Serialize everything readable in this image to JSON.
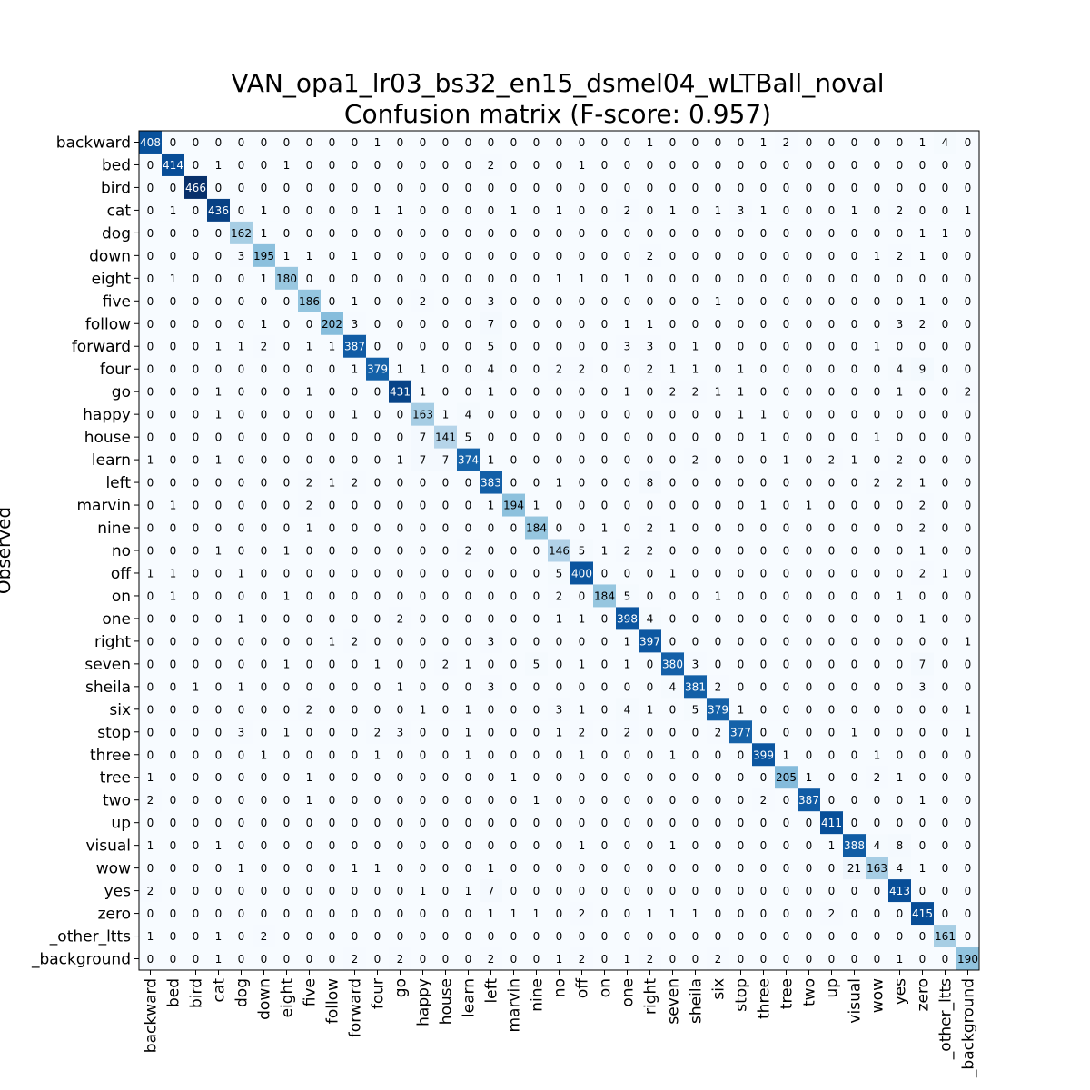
{
  "chart_data": {
    "type": "heatmap",
    "title": "VAN_opa1_lr03_bs32_en15_dsmel04_wLTBall_noval",
    "subtitle": "Confusion matrix (F-score: 0.957)",
    "ylabel": "Observed",
    "xlabel": "",
    "colormap": "Blues",
    "low_color": "#f7fbff",
    "high_color": "#08306b",
    "labels": [
      "backward",
      "bed",
      "bird",
      "cat",
      "dog",
      "down",
      "eight",
      "five",
      "follow",
      "forward",
      "four",
      "go",
      "happy",
      "house",
      "learn",
      "left",
      "marvin",
      "nine",
      "no",
      "off",
      "on",
      "one",
      "right",
      "seven",
      "sheila",
      "six",
      "stop",
      "three",
      "tree",
      "two",
      "up",
      "visual",
      "wow",
      "yes",
      "zero",
      "_other_ltts",
      "_background"
    ],
    "matrix": [
      [
        408,
        0,
        0,
        0,
        0,
        0,
        0,
        0,
        0,
        0,
        1,
        0,
        0,
        0,
        0,
        0,
        0,
        0,
        0,
        0,
        0,
        0,
        1,
        0,
        0,
        0,
        0,
        1,
        2,
        0,
        0,
        0,
        0,
        0,
        1,
        4,
        0
      ],
      [
        0,
        414,
        0,
        1,
        0,
        0,
        1,
        0,
        0,
        0,
        0,
        0,
        0,
        0,
        0,
        2,
        0,
        0,
        0,
        1,
        0,
        0,
        0,
        0,
        0,
        0,
        0,
        0,
        0,
        0,
        0,
        0,
        0,
        0,
        0,
        0,
        0
      ],
      [
        0,
        0,
        466,
        0,
        0,
        0,
        0,
        0,
        0,
        0,
        0,
        0,
        0,
        0,
        0,
        0,
        0,
        0,
        0,
        0,
        0,
        0,
        0,
        0,
        0,
        0,
        0,
        0,
        0,
        0,
        0,
        0,
        0,
        0,
        0,
        0,
        0
      ],
      [
        0,
        1,
        0,
        436,
        0,
        1,
        0,
        0,
        0,
        0,
        1,
        1,
        0,
        0,
        0,
        0,
        1,
        0,
        1,
        0,
        0,
        2,
        0,
        1,
        0,
        1,
        3,
        1,
        0,
        0,
        0,
        1,
        0,
        2,
        0,
        0,
        1
      ],
      [
        0,
        0,
        0,
        0,
        162,
        1,
        0,
        0,
        0,
        0,
        0,
        0,
        0,
        0,
        0,
        0,
        0,
        0,
        0,
        0,
        0,
        0,
        0,
        0,
        0,
        0,
        0,
        0,
        0,
        0,
        0,
        0,
        0,
        0,
        1,
        1,
        0
      ],
      [
        0,
        0,
        0,
        0,
        3,
        195,
        1,
        1,
        0,
        1,
        0,
        0,
        0,
        0,
        0,
        0,
        0,
        0,
        0,
        0,
        0,
        0,
        2,
        0,
        0,
        0,
        0,
        0,
        0,
        0,
        0,
        0,
        1,
        2,
        1,
        0,
        0
      ],
      [
        0,
        1,
        0,
        0,
        0,
        1,
        180,
        0,
        0,
        0,
        0,
        0,
        0,
        0,
        0,
        0,
        0,
        0,
        1,
        1,
        0,
        1,
        0,
        0,
        0,
        0,
        0,
        0,
        0,
        0,
        0,
        0,
        0,
        0,
        0,
        0,
        0
      ],
      [
        0,
        0,
        0,
        0,
        0,
        0,
        0,
        186,
        0,
        1,
        0,
        0,
        2,
        0,
        0,
        3,
        0,
        0,
        0,
        0,
        0,
        0,
        0,
        0,
        0,
        1,
        0,
        0,
        0,
        0,
        0,
        0,
        0,
        0,
        1,
        0,
        0
      ],
      [
        0,
        0,
        0,
        0,
        0,
        1,
        0,
        0,
        202,
        3,
        0,
        0,
        0,
        0,
        0,
        7,
        0,
        0,
        0,
        0,
        0,
        1,
        1,
        0,
        0,
        0,
        0,
        0,
        0,
        0,
        0,
        0,
        0,
        3,
        2,
        0,
        0
      ],
      [
        0,
        0,
        0,
        1,
        1,
        2,
        0,
        1,
        1,
        387,
        0,
        0,
        0,
        0,
        0,
        5,
        0,
        0,
        0,
        0,
        0,
        3,
        3,
        0,
        1,
        0,
        0,
        0,
        0,
        0,
        0,
        0,
        1,
        0,
        0,
        0,
        0
      ],
      [
        0,
        0,
        0,
        0,
        0,
        0,
        0,
        0,
        0,
        1,
        379,
        1,
        1,
        0,
        0,
        4,
        0,
        0,
        2,
        2,
        0,
        0,
        2,
        1,
        1,
        0,
        1,
        0,
        0,
        0,
        0,
        0,
        0,
        4,
        9,
        0,
        0
      ],
      [
        0,
        0,
        0,
        1,
        0,
        0,
        0,
        1,
        0,
        0,
        0,
        431,
        1,
        0,
        0,
        1,
        0,
        0,
        0,
        0,
        0,
        1,
        0,
        2,
        2,
        1,
        1,
        0,
        0,
        0,
        0,
        0,
        0,
        1,
        0,
        0,
        2
      ],
      [
        0,
        0,
        0,
        1,
        0,
        0,
        0,
        0,
        0,
        1,
        0,
        0,
        163,
        1,
        4,
        0,
        0,
        0,
        0,
        0,
        0,
        0,
        0,
        0,
        0,
        0,
        1,
        1,
        0,
        0,
        0,
        0,
        0,
        0,
        0,
        0,
        0
      ],
      [
        0,
        0,
        0,
        0,
        0,
        0,
        0,
        0,
        0,
        0,
        0,
        0,
        7,
        141,
        5,
        0,
        0,
        0,
        0,
        0,
        0,
        0,
        0,
        0,
        0,
        0,
        0,
        1,
        0,
        0,
        0,
        0,
        1,
        0,
        0,
        0,
        0
      ],
      [
        1,
        0,
        0,
        1,
        0,
        0,
        0,
        0,
        0,
        0,
        0,
        1,
        7,
        7,
        374,
        1,
        0,
        0,
        0,
        0,
        0,
        0,
        0,
        0,
        2,
        0,
        0,
        0,
        1,
        0,
        2,
        1,
        0,
        2,
        0,
        0,
        0
      ],
      [
        0,
        0,
        0,
        0,
        0,
        0,
        0,
        2,
        1,
        2,
        0,
        0,
        0,
        0,
        0,
        383,
        0,
        0,
        1,
        0,
        0,
        0,
        8,
        0,
        0,
        0,
        0,
        0,
        0,
        0,
        0,
        0,
        2,
        2,
        1,
        0,
        0
      ],
      [
        0,
        1,
        0,
        0,
        0,
        0,
        0,
        2,
        0,
        0,
        0,
        0,
        0,
        0,
        0,
        1,
        194,
        1,
        0,
        0,
        0,
        0,
        0,
        0,
        0,
        0,
        0,
        1,
        0,
        1,
        0,
        0,
        0,
        0,
        2,
        0,
        0
      ],
      [
        0,
        0,
        0,
        0,
        0,
        0,
        0,
        1,
        0,
        0,
        0,
        0,
        0,
        0,
        0,
        0,
        0,
        184,
        0,
        0,
        1,
        0,
        2,
        1,
        0,
        0,
        0,
        0,
        0,
        0,
        0,
        0,
        0,
        0,
        2,
        0,
        0
      ],
      [
        0,
        0,
        0,
        1,
        0,
        0,
        1,
        0,
        0,
        0,
        0,
        0,
        0,
        0,
        2,
        0,
        0,
        0,
        146,
        5,
        1,
        2,
        2,
        0,
        0,
        0,
        0,
        0,
        0,
        0,
        0,
        0,
        0,
        0,
        1,
        0,
        0
      ],
      [
        1,
        1,
        0,
        0,
        1,
        0,
        0,
        0,
        0,
        0,
        0,
        0,
        0,
        0,
        0,
        0,
        0,
        0,
        5,
        400,
        0,
        0,
        0,
        1,
        0,
        0,
        0,
        0,
        0,
        0,
        0,
        0,
        0,
        0,
        2,
        1,
        0
      ],
      [
        0,
        1,
        0,
        0,
        0,
        0,
        1,
        0,
        0,
        0,
        0,
        0,
        0,
        0,
        0,
        0,
        0,
        0,
        2,
        0,
        184,
        5,
        0,
        0,
        0,
        1,
        0,
        0,
        0,
        0,
        0,
        0,
        0,
        1,
        0,
        0,
        0
      ],
      [
        0,
        0,
        0,
        0,
        1,
        0,
        0,
        0,
        0,
        0,
        0,
        2,
        0,
        0,
        0,
        0,
        0,
        0,
        1,
        1,
        0,
        398,
        4,
        0,
        0,
        0,
        0,
        0,
        0,
        0,
        0,
        0,
        0,
        0,
        1,
        0,
        0
      ],
      [
        0,
        0,
        0,
        0,
        0,
        0,
        0,
        0,
        1,
        2,
        0,
        0,
        0,
        0,
        0,
        3,
        0,
        0,
        0,
        0,
        0,
        1,
        397,
        0,
        0,
        0,
        0,
        0,
        0,
        0,
        0,
        0,
        0,
        0,
        0,
        0,
        1
      ],
      [
        0,
        0,
        0,
        0,
        0,
        0,
        1,
        0,
        0,
        0,
        1,
        0,
        0,
        2,
        1,
        0,
        0,
        5,
        0,
        1,
        0,
        1,
        0,
        380,
        3,
        0,
        0,
        0,
        0,
        0,
        0,
        0,
        0,
        0,
        7,
        0,
        0
      ],
      [
        0,
        0,
        1,
        0,
        1,
        0,
        0,
        0,
        0,
        0,
        0,
        1,
        0,
        0,
        0,
        3,
        0,
        0,
        0,
        0,
        0,
        0,
        0,
        4,
        381,
        2,
        0,
        0,
        0,
        0,
        0,
        0,
        0,
        0,
        3,
        0,
        0
      ],
      [
        0,
        0,
        0,
        0,
        0,
        0,
        0,
        2,
        0,
        0,
        0,
        0,
        1,
        0,
        1,
        0,
        0,
        0,
        3,
        1,
        0,
        4,
        1,
        0,
        5,
        379,
        1,
        0,
        0,
        0,
        0,
        0,
        0,
        0,
        0,
        0,
        1
      ],
      [
        0,
        0,
        0,
        0,
        3,
        0,
        1,
        0,
        0,
        0,
        2,
        3,
        0,
        0,
        1,
        0,
        0,
        0,
        1,
        2,
        0,
        2,
        0,
        0,
        0,
        2,
        377,
        0,
        0,
        0,
        0,
        1,
        0,
        0,
        0,
        0,
        1
      ],
      [
        0,
        0,
        0,
        0,
        0,
        1,
        0,
        0,
        0,
        0,
        1,
        0,
        0,
        0,
        1,
        0,
        0,
        0,
        0,
        1,
        0,
        0,
        0,
        1,
        0,
        0,
        0,
        399,
        1,
        0,
        0,
        0,
        1,
        0,
        0,
        0,
        0
      ],
      [
        1,
        0,
        0,
        0,
        0,
        0,
        0,
        1,
        0,
        0,
        0,
        0,
        0,
        0,
        0,
        0,
        1,
        0,
        0,
        0,
        0,
        0,
        0,
        0,
        0,
        0,
        0,
        0,
        205,
        1,
        0,
        0,
        2,
        1,
        0,
        0,
        0
      ],
      [
        2,
        0,
        0,
        0,
        0,
        0,
        0,
        1,
        0,
        0,
        0,
        0,
        0,
        0,
        0,
        0,
        0,
        1,
        0,
        0,
        0,
        0,
        0,
        0,
        0,
        0,
        0,
        2,
        0,
        387,
        0,
        0,
        0,
        0,
        1,
        0,
        0
      ],
      [
        0,
        0,
        0,
        0,
        0,
        0,
        0,
        0,
        0,
        0,
        0,
        0,
        0,
        0,
        0,
        0,
        0,
        0,
        0,
        0,
        0,
        0,
        0,
        0,
        0,
        0,
        0,
        0,
        0,
        0,
        411,
        0,
        0,
        0,
        0,
        0,
        0
      ],
      [
        1,
        0,
        0,
        1,
        0,
        0,
        0,
        0,
        0,
        0,
        0,
        0,
        0,
        0,
        0,
        0,
        0,
        0,
        0,
        1,
        0,
        0,
        0,
        1,
        0,
        0,
        0,
        0,
        0,
        0,
        1,
        388,
        4,
        8,
        0,
        0,
        0
      ],
      [
        0,
        0,
        0,
        0,
        1,
        0,
        0,
        0,
        0,
        1,
        1,
        0,
        0,
        0,
        0,
        1,
        0,
        0,
        0,
        0,
        0,
        0,
        0,
        0,
        0,
        0,
        0,
        0,
        0,
        0,
        0,
        21,
        163,
        4,
        1,
        0,
        0
      ],
      [
        2,
        0,
        0,
        0,
        0,
        0,
        0,
        0,
        0,
        0,
        0,
        0,
        1,
        0,
        1,
        7,
        0,
        0,
        0,
        0,
        0,
        0,
        0,
        0,
        0,
        0,
        0,
        0,
        0,
        0,
        0,
        0,
        0,
        413,
        0,
        0,
        0
      ],
      [
        0,
        0,
        0,
        0,
        0,
        0,
        0,
        0,
        0,
        0,
        0,
        0,
        0,
        0,
        0,
        1,
        1,
        1,
        0,
        2,
        0,
        0,
        1,
        1,
        1,
        0,
        0,
        0,
        0,
        0,
        2,
        0,
        0,
        0,
        415,
        0,
        0
      ],
      [
        1,
        0,
        0,
        1,
        0,
        2,
        0,
        0,
        0,
        0,
        0,
        0,
        0,
        0,
        0,
        0,
        0,
        0,
        0,
        0,
        0,
        0,
        0,
        0,
        0,
        0,
        0,
        0,
        0,
        0,
        0,
        0,
        0,
        0,
        0,
        161,
        0
      ],
      [
        0,
        0,
        0,
        1,
        0,
        0,
        0,
        0,
        0,
        2,
        0,
        2,
        0,
        0,
        0,
        2,
        0,
        0,
        1,
        2,
        0,
        1,
        2,
        0,
        0,
        2,
        0,
        0,
        0,
        0,
        0,
        0,
        0,
        1,
        0,
        0,
        190
      ]
    ]
  }
}
